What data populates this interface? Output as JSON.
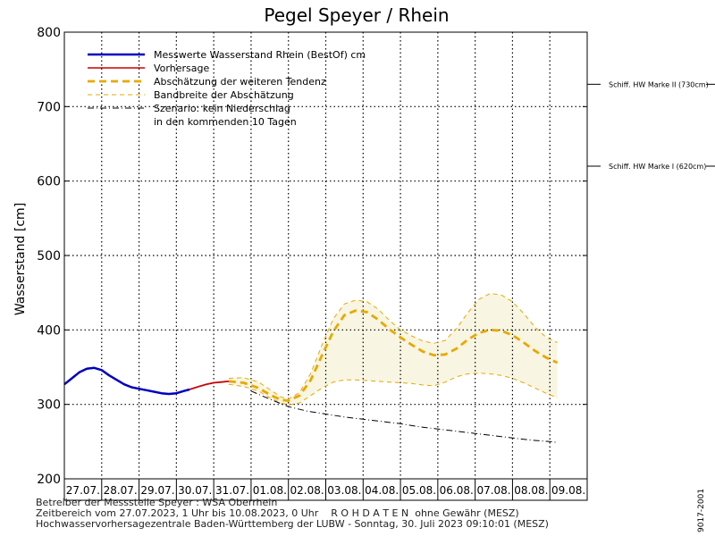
{
  "chart_data": {
    "type": "line",
    "title": "Pegel Speyer / Rhein",
    "ylabel": "Wasserstand [cm]",
    "ylim": [
      200,
      800
    ],
    "yticks": [
      200,
      300,
      400,
      500,
      600,
      700,
      800
    ],
    "grid": true,
    "x_categories": [
      "27.07.",
      "28.07.",
      "29.07.",
      "30.07.",
      "31.07.",
      "01.08.",
      "02.08.",
      "03.08.",
      "04.08.",
      "05.08.",
      "06.08.",
      "07.08.",
      "08.08.",
      "09.08."
    ],
    "legend": {
      "placement": "top-left",
      "entries": [
        "Messwerte Wasserstand Rhein (BestOf)   cm",
        "Vorhersage",
        "Abschätzung der weiteren Tendenz",
        "Bandbreite der Abschätzung",
        "Szenario: kein Niederschlag",
        "in den kommenden 10 Tagen"
      ]
    },
    "reference_lines": [
      {
        "label": "Schiff. HW Marke II (730cm)",
        "value": 730
      },
      {
        "label": "Schiff. HW Marke I (620cm)",
        "value": 620
      }
    ],
    "series": [
      {
        "name": "Messwerte Wasserstand Rhein (BestOf)   cm",
        "color": "#0000c0",
        "style": "solid-thick",
        "x": [
          0.0,
          0.2,
          0.4,
          0.6,
          0.8,
          1.0,
          1.2,
          1.4,
          1.6,
          1.8,
          2.0,
          2.2,
          2.4,
          2.6,
          2.8,
          3.0,
          3.2,
          3.35
        ],
        "y": [
          327,
          335,
          343,
          348,
          349,
          346,
          339,
          333,
          327,
          323,
          321,
          319,
          317,
          315,
          314,
          315,
          318,
          320
        ]
      },
      {
        "name": "Vorhersage",
        "color": "#cc0000",
        "style": "solid",
        "x": [
          3.35,
          3.6,
          3.8,
          4.0,
          4.2,
          4.4
        ],
        "y": [
          320,
          324,
          327,
          329,
          330,
          331
        ]
      },
      {
        "name": "Abschätzung der weiteren Tendenz",
        "color": "#e8a800",
        "style": "dashed-thick",
        "x": [
          4.4,
          4.8,
          5.2,
          5.5,
          5.8,
          6.0,
          6.3,
          6.6,
          6.9,
          7.2,
          7.5,
          7.8,
          8.1,
          8.4,
          8.7,
          9.0,
          9.3,
          9.6,
          9.9,
          10.2,
          10.5,
          10.8,
          11.1,
          11.4,
          11.7,
          12.0,
          12.3,
          12.6,
          12.9,
          13.2
        ],
        "y": [
          331,
          329,
          322,
          313,
          306,
          305,
          312,
          333,
          366,
          398,
          420,
          426,
          424,
          414,
          401,
          390,
          380,
          371,
          366,
          367,
          375,
          387,
          396,
          400,
          399,
          393,
          383,
          372,
          363,
          356
        ]
      },
      {
        "name": "Bandbreite der Abschätzung (obere Grenze)",
        "color": "#e8a800",
        "style": "dashed",
        "x": [
          4.4,
          4.8,
          5.2,
          5.5,
          5.8,
          6.0,
          6.3,
          6.6,
          6.9,
          7.2,
          7.5,
          7.8,
          8.1,
          8.4,
          8.7,
          9.0,
          9.3,
          9.6,
          9.9,
          10.2,
          10.5,
          10.8,
          11.1,
          11.4,
          11.7,
          12.0,
          12.3,
          12.6,
          12.9,
          13.2
        ],
        "y": [
          335,
          336,
          330,
          320,
          310,
          307,
          316,
          342,
          380,
          415,
          435,
          440,
          438,
          428,
          413,
          400,
          392,
          385,
          382,
          386,
          402,
          423,
          441,
          449,
          447,
          438,
          422,
          404,
          390,
          383
        ]
      },
      {
        "name": "Bandbreite der Abschätzung (untere Grenze)",
        "color": "#e8a800",
        "style": "dashed",
        "x": [
          4.4,
          4.8,
          5.2,
          5.5,
          5.8,
          6.0,
          6.3,
          6.6,
          6.9,
          7.2,
          7.5,
          7.8,
          8.1,
          8.4,
          8.7,
          9.0,
          9.3,
          9.6,
          9.9,
          10.2,
          10.5,
          10.8,
          11.1,
          11.4,
          11.7,
          12.0,
          12.3,
          12.6,
          12.9,
          13.2
        ],
        "y": [
          327,
          324,
          318,
          309,
          302,
          299,
          302,
          312,
          322,
          330,
          333,
          333,
          332,
          331,
          330,
          329,
          328,
          326,
          325,
          330,
          337,
          341,
          342,
          341,
          339,
          335,
          329,
          322,
          315,
          309
        ]
      },
      {
        "name": "Szenario: kein Niederschlag",
        "color": "#000000",
        "style": "dashdot",
        "x": [
          5.0,
          5.5,
          6.0,
          6.5,
          7.0,
          7.5,
          8.0,
          8.5,
          9.0,
          9.5,
          10.0,
          10.5,
          11.0,
          11.5,
          12.0,
          12.5,
          13.0,
          13.2
        ],
        "y": [
          318,
          307,
          297,
          291,
          287,
          283,
          280,
          277,
          274,
          270,
          267,
          264,
          261,
          258,
          255,
          252,
          250,
          249
        ]
      }
    ]
  },
  "footer": {
    "line1": "Betreiber der Messstelle Speyer : WSA Oberrhein",
    "line2": "Zeitbereich vom 27.07.2023, 1 Uhr bis 10.08.2023, 0 Uhr    R O H D A T E N  ohne Gewähr (MESZ)",
    "line3": "Hochwasservorhersagezentrale Baden-Württemberg der LUBW - Sonntag, 30. Juli 2023 09:10:01 (MESZ)"
  },
  "version_label": "9017-2001"
}
